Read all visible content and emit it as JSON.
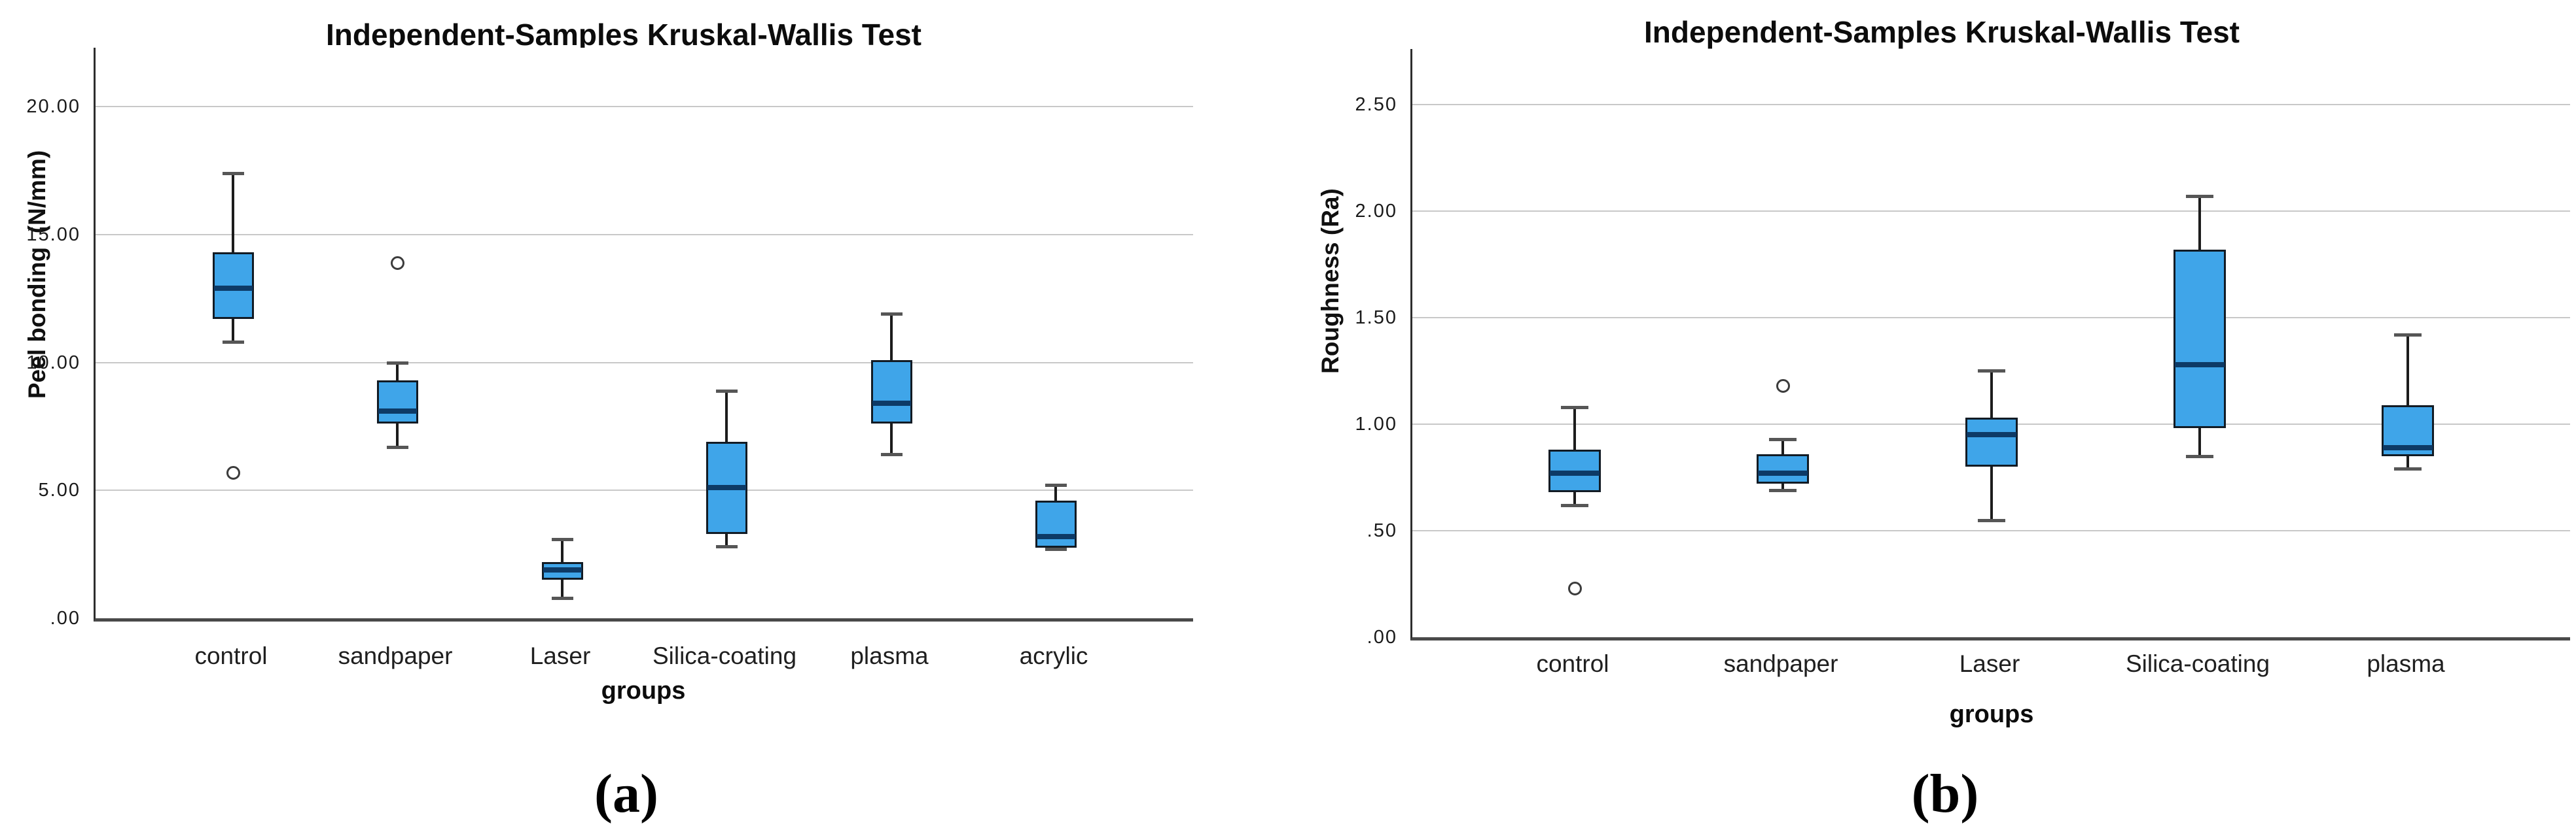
{
  "style": {
    "box_fill": "#3fa5e9",
    "box_border": "#121b24",
    "median_color": "#0d3a66",
    "grid_color": "#c8c8c8",
    "y_axis_color": "#2e2e2e",
    "x_axis_color": "#4a4a4a",
    "whisker_color": "#1c1c1c",
    "cap_color": "#565656",
    "outlier_color": "#3c3c3c",
    "text_color": "#141414"
  },
  "chart_data": [
    {
      "type": "boxplot",
      "panel_label": "(a)",
      "title": "Independent-Samples Kruskal-Wallis Test",
      "xlabel": "groups",
      "ylabel": "Peel bonding  (N/mm)",
      "ylim": [
        0,
        22.3
      ],
      "grid": true,
      "legend": "none",
      "yticks": [
        {
          "v": 0,
          "label": ".00"
        },
        {
          "v": 5,
          "label": "5.00"
        },
        {
          "v": 10,
          "label": "10.00"
        },
        {
          "v": 15,
          "label": "15.00"
        },
        {
          "v": 20,
          "label": "20.00"
        }
      ],
      "categories": [
        "control",
        "sandpaper",
        "Laser",
        "Silica-coating",
        "plasma",
        "acrylic"
      ],
      "boxes": [
        {
          "category": "control",
          "whisker_low": 10.8,
          "q1": 11.7,
          "median": 12.9,
          "q3": 14.3,
          "whisker_high": 17.4,
          "outliers": [
            5.7
          ]
        },
        {
          "category": "sandpaper",
          "whisker_low": 6.7,
          "q1": 7.6,
          "median": 8.1,
          "q3": 9.3,
          "whisker_high": 10.0,
          "outliers": [
            13.9
          ]
        },
        {
          "category": "Laser",
          "whisker_low": 0.8,
          "q1": 1.5,
          "median": 1.9,
          "q3": 2.2,
          "whisker_high": 3.1,
          "outliers": []
        },
        {
          "category": "Silica-coating",
          "whisker_low": 2.8,
          "q1": 3.3,
          "median": 5.1,
          "q3": 6.9,
          "whisker_high": 8.9,
          "outliers": []
        },
        {
          "category": "plasma",
          "whisker_low": 6.4,
          "q1": 7.6,
          "median": 8.4,
          "q3": 10.1,
          "whisker_high": 11.9,
          "outliers": []
        },
        {
          "category": "acrylic",
          "whisker_low": 2.7,
          "q1": 2.75,
          "median": 3.2,
          "q3": 4.6,
          "whisker_high": 5.2,
          "outliers": []
        }
      ]
    },
    {
      "type": "boxplot",
      "panel_label": "(b)",
      "title": "Independent-Samples Kruskal-Wallis Test",
      "xlabel": "groups",
      "ylabel": "Roughness (Ra)",
      "ylim": [
        0,
        2.76
      ],
      "grid": true,
      "legend": "none",
      "yticks": [
        {
          "v": 0,
          "label": ".00"
        },
        {
          "v": 0.5,
          "label": ".50"
        },
        {
          "v": 1.0,
          "label": "1.00"
        },
        {
          "v": 1.5,
          "label": "1.50"
        },
        {
          "v": 2.0,
          "label": "2.00"
        },
        {
          "v": 2.5,
          "label": "2.50"
        }
      ],
      "categories": [
        "control",
        "sandpaper",
        "Laser",
        "Silica-coating",
        "plasma"
      ],
      "boxes": [
        {
          "category": "control",
          "whisker_low": 0.62,
          "q1": 0.68,
          "median": 0.77,
          "q3": 0.88,
          "whisker_high": 1.08,
          "outliers": [
            0.23
          ]
        },
        {
          "category": "sandpaper",
          "whisker_low": 0.69,
          "q1": 0.72,
          "median": 0.77,
          "q3": 0.86,
          "whisker_high": 0.93,
          "outliers": [
            1.18
          ]
        },
        {
          "category": "Laser",
          "whisker_low": 0.55,
          "q1": 0.8,
          "median": 0.95,
          "q3": 1.03,
          "whisker_high": 1.25,
          "outliers": []
        },
        {
          "category": "Silica-coating",
          "whisker_low": 0.85,
          "q1": 0.98,
          "median": 1.28,
          "q3": 1.82,
          "whisker_high": 2.07,
          "outliers": []
        },
        {
          "category": "plasma",
          "whisker_low": 0.79,
          "q1": 0.85,
          "median": 0.89,
          "q3": 1.09,
          "whisker_high": 1.42,
          "outliers": []
        }
      ]
    }
  ]
}
